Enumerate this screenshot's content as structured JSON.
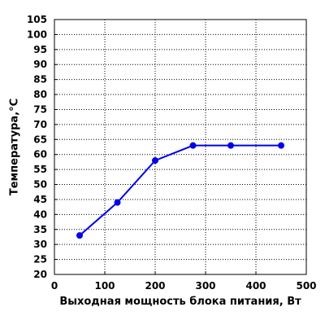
{
  "chart_data": {
    "type": "line",
    "title": "",
    "xlabel": "Выходная мощность блока питания, Вт",
    "ylabel": "Температура,°С",
    "xlim": [
      0,
      500
    ],
    "ylim": [
      20,
      105
    ],
    "xticks": [
      0,
      100,
      200,
      300,
      400,
      500
    ],
    "yticks": [
      20,
      25,
      30,
      35,
      40,
      45,
      50,
      55,
      60,
      65,
      70,
      75,
      80,
      85,
      90,
      95,
      100,
      105
    ],
    "grid": true,
    "grid_style": "dotted",
    "series": [
      {
        "color": "#0000ee",
        "x": [
          50,
          125,
          200,
          275,
          350,
          450
        ],
        "y": [
          33,
          44,
          58,
          63,
          63,
          63
        ]
      }
    ]
  }
}
